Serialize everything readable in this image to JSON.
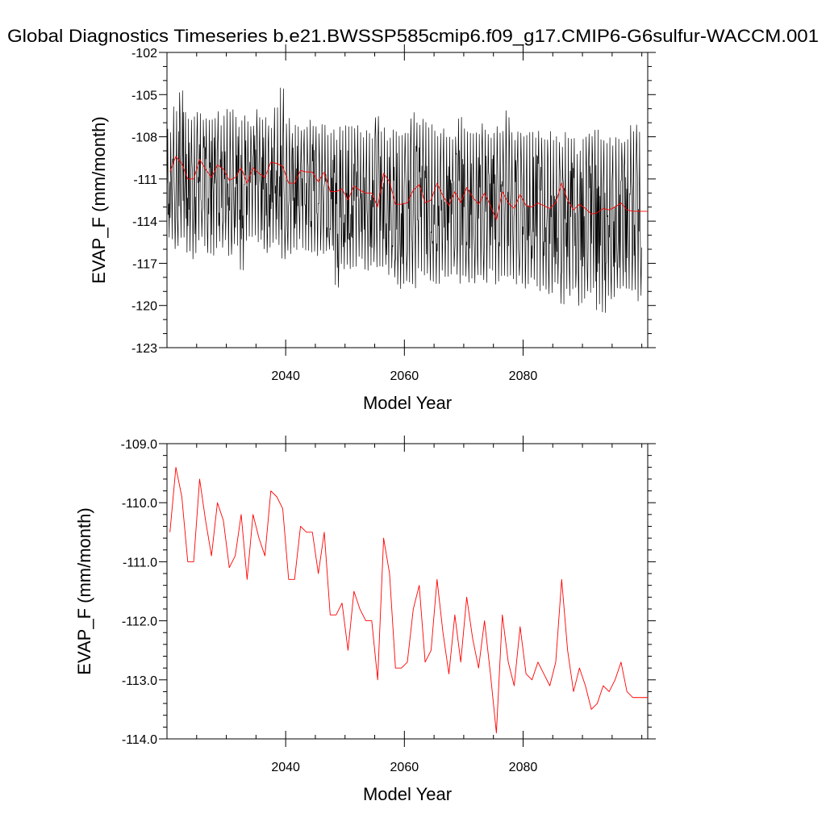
{
  "figure_title": "Global Diagnostics Timeseries b.e21.BWSSP585cmip6.f09_g17.CMIP6-G6sulfur-WACCM.001",
  "colors": {
    "monthly_line": "#000000",
    "annual_line": "#ff0000",
    "frame": "#000000",
    "background": "#ffffff"
  },
  "chart_data": [
    {
      "type": "line",
      "title": "Global Diagnostics Timeseries b.e21.BWSSP585cmip6.f09_g17.CMIP6-G6sulfur-WACCM.001",
      "xlabel": "Model Year",
      "ylabel": "EVAP_F (mm/month)",
      "xlim": [
        2020,
        2101
      ],
      "ylim": [
        -123,
        -102
      ],
      "x_ticks": [
        2040,
        2060,
        2080
      ],
      "x_tick_labels": [
        "2040",
        "2060",
        "2080"
      ],
      "y_ticks": [
        -102,
        -105,
        -108,
        -111,
        -114,
        -117,
        -120,
        -123
      ],
      "y_tick_labels": [
        "-102",
        "-105",
        "-108",
        "-111",
        "-114",
        "-117",
        "-120",
        "-123"
      ],
      "grid": false,
      "series": [
        {
          "color": "#000000",
          "description": "monthly values, oscillating seasonally about the annual mean",
          "x_start": 2020.04,
          "x_step": 0.0833333,
          "per_year_min": [
            -115.5,
            -116.5,
            -115.5,
            -116.5,
            -116.8,
            -115.7,
            -116.5,
            -116.5,
            -116.0,
            -116.0,
            -116.5,
            -116.0,
            -117.5,
            -115.8,
            -115.5,
            -116.0,
            -116.5,
            -116.0,
            -116.0,
            -117.0,
            -116.5,
            -116.5,
            -116.0,
            -116.5,
            -116.5,
            -116.5,
            -116.5,
            -116.5,
            -119.2,
            -117.5,
            -117.5,
            -117.5,
            -117.0,
            -117.5,
            -117.5,
            -117.5,
            -117.5,
            -118.0,
            -118.5,
            -119.0,
            -118.8,
            -119.0,
            -118.0,
            -118.5,
            -118.5,
            -118.5,
            -118.0,
            -118.5,
            -118.0,
            -118.5,
            -118.5,
            -118.5,
            -118.0,
            -118.5,
            -118.0,
            -118.5,
            -118.5,
            -118.5,
            -118.5,
            -118.5,
            -119.0,
            -118.5,
            -119.0,
            -119.0,
            -119.5,
            -119.0,
            -120.2,
            -119.5,
            -119.5,
            -120.0,
            -119.5,
            -119.5,
            -120.5,
            -121.1,
            -120.0,
            -119.5,
            -119.0,
            -119.5,
            -119.5,
            -120.0
          ],
          "per_year_max": [
            -107.0,
            -105.8,
            -104.5,
            -106.0,
            -106.5,
            -106.0,
            -106.2,
            -106.5,
            -106.0,
            -106.5,
            -106.0,
            -106.0,
            -106.8,
            -106.2,
            -106.5,
            -106.0,
            -106.5,
            -106.8,
            -105.8,
            -104.5,
            -106.5,
            -107.0,
            -107.0,
            -107.0,
            -106.5,
            -107.0,
            -107.0,
            -107.5,
            -107.5,
            -107.0,
            -107.0,
            -107.0,
            -107.0,
            -107.5,
            -107.5,
            -106.0,
            -107.0,
            -107.5,
            -107.5,
            -107.5,
            -107.5,
            -106.0,
            -107.0,
            -106.5,
            -107.0,
            -107.5,
            -107.0,
            -107.5,
            -107.5,
            -106.5,
            -107.0,
            -107.5,
            -107.5,
            -107.0,
            -107.5,
            -107.0,
            -107.5,
            -106.0,
            -107.5,
            -107.5,
            -107.5,
            -107.5,
            -107.5,
            -107.5,
            -107.5,
            -107.5,
            -108.0,
            -107.5,
            -107.5,
            -108.5,
            -108.0,
            -107.5,
            -107.5,
            -107.5,
            -108.0,
            -108.0,
            -108.0,
            -108.0,
            -107.0,
            -107.0
          ]
        },
        {
          "color": "#ff0000",
          "description": "annual mean",
          "x_start": 2020.5,
          "x_step": 1,
          "values": [
            -110.5,
            -109.4,
            -109.9,
            -111.0,
            -111.0,
            -109.6,
            -110.3,
            -110.9,
            -110.0,
            -110.3,
            -111.1,
            -110.9,
            -110.2,
            -111.3,
            -110.2,
            -110.6,
            -110.9,
            -109.8,
            -109.9,
            -110.1,
            -111.3,
            -111.3,
            -110.4,
            -110.5,
            -110.5,
            -111.2,
            -110.5,
            -111.9,
            -111.9,
            -111.7,
            -112.5,
            -111.5,
            -111.8,
            -112.0,
            -112.0,
            -113.0,
            -110.6,
            -111.2,
            -112.8,
            -112.8,
            -112.7,
            -111.8,
            -111.4,
            -112.7,
            -112.5,
            -111.3,
            -112.2,
            -112.9,
            -111.9,
            -112.7,
            -111.6,
            -112.3,
            -112.8,
            -112.0,
            -112.9,
            -113.9,
            -111.9,
            -112.7,
            -113.1,
            -112.1,
            -112.9,
            -113.0,
            -112.7,
            -112.9,
            -113.1,
            -112.7,
            -111.3,
            -112.5,
            -113.2,
            -112.8,
            -113.1,
            -113.5,
            -113.4,
            -113.1,
            -113.2,
            -113.0,
            -112.7,
            -113.2,
            -113.3
          ]
        }
      ]
    },
    {
      "type": "line",
      "xlabel": "Model Year",
      "ylabel": "EVAP_F (mm/month)",
      "xlim": [
        2020,
        2101
      ],
      "ylim": [
        -114,
        -109
      ],
      "x_ticks": [
        2040,
        2060,
        2080
      ],
      "x_tick_labels": [
        "2040",
        "2060",
        "2080"
      ],
      "y_ticks": [
        -109,
        -110,
        -111,
        -112,
        -113,
        -114
      ],
      "y_tick_labels": [
        "-109.0",
        "-110.0",
        "-111.0",
        "-112.0",
        "-113.0",
        "-114.0"
      ],
      "grid": false,
      "series": [
        {
          "color": "#ff0000",
          "description": "annual mean",
          "x_start": 2020.5,
          "x_step": 1,
          "values": [
            -110.5,
            -109.4,
            -109.9,
            -111.0,
            -111.0,
            -109.6,
            -110.3,
            -110.9,
            -110.0,
            -110.3,
            -111.1,
            -110.9,
            -110.2,
            -111.3,
            -110.2,
            -110.6,
            -110.9,
            -109.8,
            -109.9,
            -110.1,
            -111.3,
            -111.3,
            -110.4,
            -110.5,
            -110.5,
            -111.2,
            -110.5,
            -111.9,
            -111.9,
            -111.7,
            -112.5,
            -111.5,
            -111.8,
            -112.0,
            -112.0,
            -113.0,
            -110.6,
            -111.2,
            -112.8,
            -112.8,
            -112.7,
            -111.8,
            -111.4,
            -112.7,
            -112.5,
            -111.3,
            -112.2,
            -112.9,
            -111.9,
            -112.7,
            -111.6,
            -112.3,
            -112.8,
            -112.0,
            -112.9,
            -113.9,
            -111.9,
            -112.7,
            -113.1,
            -112.1,
            -112.9,
            -113.0,
            -112.7,
            -112.9,
            -113.1,
            -112.7,
            -111.3,
            -112.5,
            -113.2,
            -112.8,
            -113.1,
            -113.5,
            -113.4,
            -113.1,
            -113.2,
            -113.0,
            -112.7,
            -113.2,
            -113.3
          ]
        }
      ]
    }
  ]
}
